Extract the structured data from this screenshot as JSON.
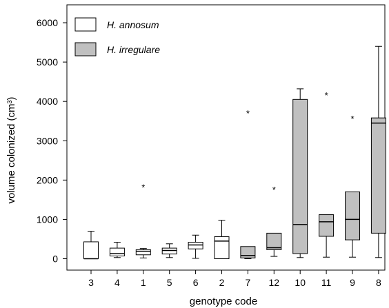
{
  "chart_data": {
    "type": "boxplot",
    "xlabel": "genotype code",
    "ylabel": "volume colonized (cm³)",
    "ylim": [
      -300,
      6300
    ],
    "yticks": [
      0,
      1000,
      2000,
      3000,
      4000,
      5000,
      6000
    ],
    "grid": false,
    "legend_position": "top-left",
    "categories": [
      "3",
      "4",
      "1",
      "5",
      "6",
      "2",
      "7",
      "12",
      "10",
      "11",
      "9",
      "8"
    ],
    "series": [
      {
        "name": "H. annosum",
        "color": "#ffffff"
      },
      {
        "name": "H. irregulare",
        "color": "#c0c0c0"
      }
    ],
    "boxes": [
      {
        "category": "3",
        "series": "H. annosum",
        "whisker_low": 0,
        "q1": 0,
        "median": 0,
        "q3": 430,
        "whisker_high": 700,
        "outliers": []
      },
      {
        "category": "4",
        "series": "H. annosum",
        "whisker_low": 30,
        "q1": 70,
        "median": 130,
        "q3": 270,
        "whisker_high": 420,
        "outliers": []
      },
      {
        "category": "1",
        "series": "H. annosum",
        "whisker_low": 20,
        "q1": 100,
        "median": 190,
        "q3": 230,
        "whisker_high": 260,
        "outliers": [
          1840
        ]
      },
      {
        "category": "5",
        "series": "H. annosum",
        "whisker_low": 30,
        "q1": 120,
        "median": 210,
        "q3": 270,
        "whisker_high": 380,
        "outliers": []
      },
      {
        "category": "6",
        "series": "H. annosum",
        "whisker_low": 10,
        "q1": 250,
        "median": 350,
        "q3": 420,
        "whisker_high": 600,
        "outliers": []
      },
      {
        "category": "2",
        "series": "H. annosum",
        "whisker_low": 0,
        "q1": 0,
        "median": 450,
        "q3": 560,
        "whisker_high": 980,
        "outliers": []
      },
      {
        "category": "7",
        "series": "H. irregulare",
        "whisker_low": 0,
        "q1": 20,
        "median": 80,
        "q3": 310,
        "whisker_high": 310,
        "outliers": [
          3720
        ]
      },
      {
        "category": "12",
        "series": "H. irregulare",
        "whisker_low": 60,
        "q1": 230,
        "median": 280,
        "q3": 650,
        "whisker_high": 650,
        "outliers": [
          1780
        ]
      },
      {
        "category": "10",
        "series": "H. irregulare",
        "whisker_low": 30,
        "q1": 130,
        "median": 870,
        "q3": 4050,
        "whisker_high": 4320,
        "outliers": []
      },
      {
        "category": "11",
        "series": "H. irregulare",
        "whisker_low": 40,
        "q1": 570,
        "median": 940,
        "q3": 1120,
        "whisker_high": 1120,
        "outliers": [
          4180
        ]
      },
      {
        "category": "9",
        "series": "H. irregulare",
        "whisker_low": 40,
        "q1": 480,
        "median": 1000,
        "q3": 1700,
        "whisker_high": 1700,
        "outliers": [
          3580
        ]
      },
      {
        "category": "8",
        "series": "H. irregulare",
        "whisker_low": 30,
        "q1": 650,
        "median": 3450,
        "q3": 3580,
        "whisker_high": 5400,
        "outliers": []
      }
    ]
  }
}
